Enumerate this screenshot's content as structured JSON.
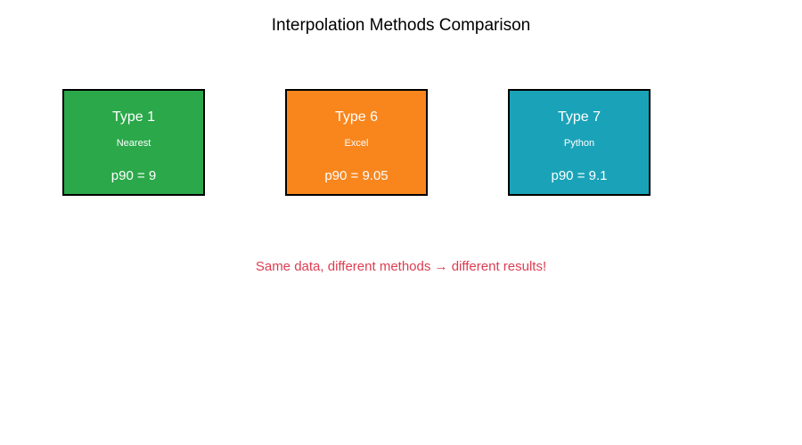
{
  "figure": {
    "title": "Interpolation Methods Comparison",
    "footnote": "Same data, different methods → different results!"
  },
  "boxes": [
    {
      "type_label": "Type 1",
      "method": "Nearest",
      "result": "p90 = 9",
      "color": "#2aa84a"
    },
    {
      "type_label": "Type 6",
      "method": "Excel",
      "result": "p90 = 9.05",
      "color": "#f8861d"
    },
    {
      "type_label": "Type 7",
      "method": "Python",
      "result": "p90 = 9.1",
      "color": "#1aa3b8"
    }
  ],
  "colors": {
    "title_text": "#000000",
    "footnote_text": "#dc3d51",
    "box_border": "#000000",
    "box_text": "#ffffff",
    "background": "#ffffff"
  }
}
